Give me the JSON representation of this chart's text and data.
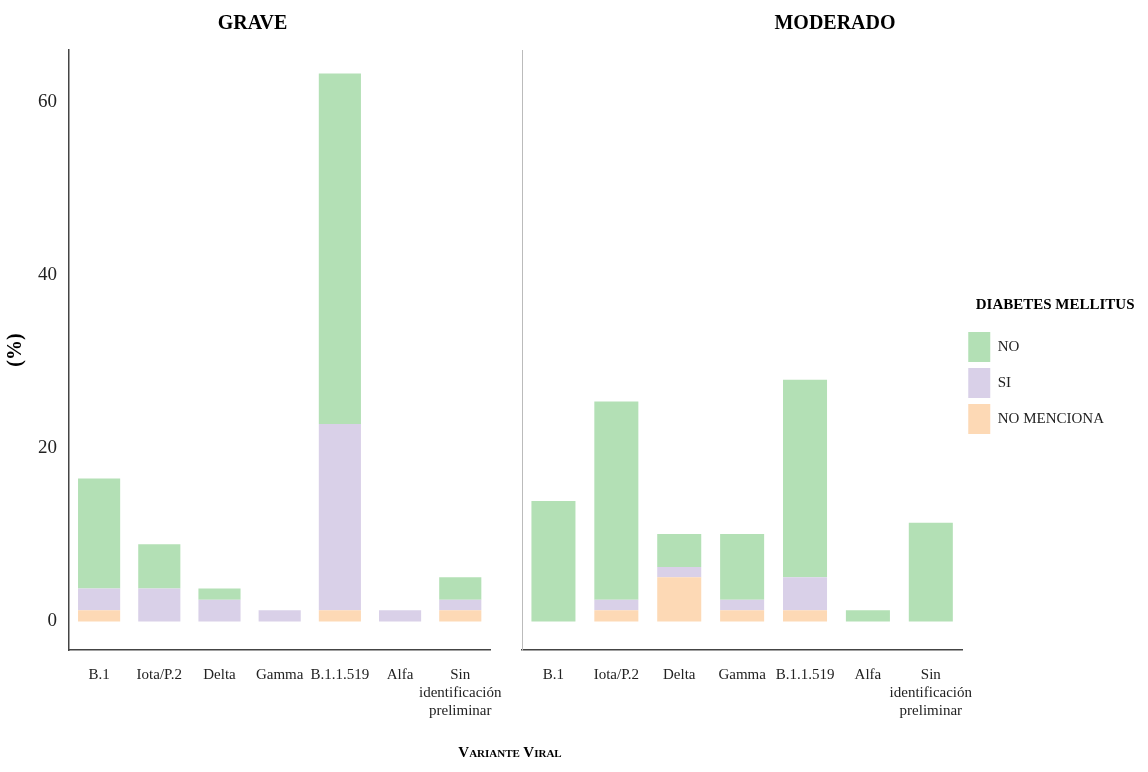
{
  "chart_data": [
    {
      "type": "bar",
      "title": "GRAVE",
      "ylabel": "(%)",
      "xlabel": "Variante Viral",
      "stacked": true,
      "legend": false,
      "grid": false,
      "categories": [
        "B.1",
        "Iota/P.2",
        "Delta",
        "Gamma",
        "B.1.1.519",
        "Alfa",
        "Sin identificación preliminar"
      ],
      "ylim": [
        -3.3,
        66
      ],
      "yticks": [
        0,
        20,
        40,
        60
      ],
      "series": [
        {
          "color": "#fdd9b5",
          "values": [
            1.3,
            0,
            0,
            0,
            1.3,
            0,
            1.3
          ]
        },
        {
          "color": "#d9d0e8",
          "values": [
            2.5,
            3.8,
            2.5,
            1.3,
            21.5,
            1.3,
            1.2
          ]
        },
        {
          "color": "#b3e0b5",
          "values": [
            12.7,
            5.1,
            1.3,
            0,
            40.5,
            0,
            2.6
          ]
        }
      ]
    },
    {
      "type": "bar",
      "title": "MODERADO",
      "legend_title": "DIABETES MELLITUS",
      "stacked": true,
      "legend": "right",
      "grid": false,
      "tick_labels": "x",
      "categories": [
        "B.1",
        "Iota/P.2",
        "Delta",
        "Gamma",
        "B.1.1.519",
        "Alfa",
        "Sin identificación preliminar"
      ],
      "ylim": [
        -3.3,
        66
      ],
      "yticks": [
        0,
        20,
        40,
        60
      ],
      "series": [
        {
          "name": "NO MENCIONA",
          "color": "#fdd9b5",
          "values": [
            0,
            1.3,
            5.1,
            1.3,
            1.3,
            0,
            0
          ]
        },
        {
          "name": "SI",
          "color": "#d9d0e8",
          "values": [
            0,
            1.2,
            1.2,
            1.2,
            3.8,
            0,
            0
          ]
        },
        {
          "name": "NO",
          "color": "#b3e0b5",
          "values": [
            13.9,
            22.9,
            3.8,
            7.6,
            22.8,
            1.3,
            11.4
          ]
        }
      ]
    }
  ]
}
